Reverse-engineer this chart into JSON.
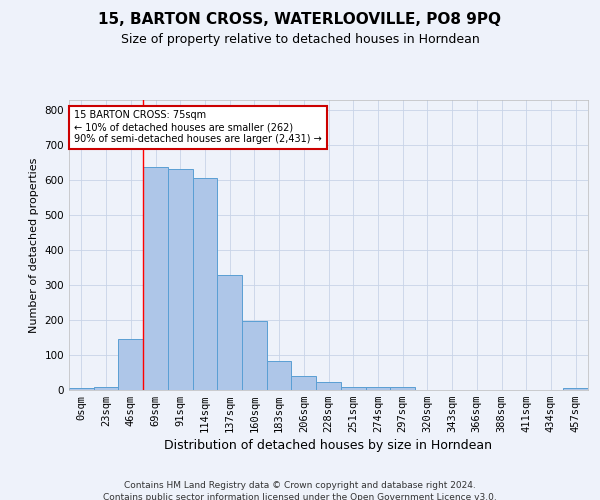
{
  "title": "15, BARTON CROSS, WATERLOOVILLE, PO8 9PQ",
  "subtitle": "Size of property relative to detached houses in Horndean",
  "xlabel": "Distribution of detached houses by size in Horndean",
  "ylabel": "Number of detached properties",
  "footer_line1": "Contains HM Land Registry data © Crown copyright and database right 2024.",
  "footer_line2": "Contains public sector information licensed under the Open Government Licence v3.0.",
  "bar_labels": [
    "0sqm",
    "23sqm",
    "46sqm",
    "69sqm",
    "91sqm",
    "114sqm",
    "137sqm",
    "160sqm",
    "183sqm",
    "206sqm",
    "228sqm",
    "251sqm",
    "274sqm",
    "297sqm",
    "320sqm",
    "343sqm",
    "366sqm",
    "388sqm",
    "411sqm",
    "434sqm",
    "457sqm"
  ],
  "bar_values": [
    5,
    10,
    145,
    638,
    633,
    607,
    330,
    197,
    84,
    40,
    22,
    10,
    10,
    10,
    0,
    0,
    0,
    0,
    0,
    0,
    5
  ],
  "bar_color": "#aec6e8",
  "bar_edge_color": "#5a9fd4",
  "background_color": "#eef2fa",
  "grid_color": "#c8d4e8",
  "annotation_line1": "15 BARTON CROSS: 75sqm",
  "annotation_line2": "← 10% of detached houses are smaller (262)",
  "annotation_line3": "90% of semi-detached houses are larger (2,431) →",
  "annotation_box_color": "#ffffff",
  "annotation_border_color": "#cc0000",
  "red_line_x": 3,
  "ylim": [
    0,
    830
  ],
  "yticks": [
    0,
    100,
    200,
    300,
    400,
    500,
    600,
    700,
    800
  ],
  "title_fontsize": 11,
  "subtitle_fontsize": 9,
  "ylabel_fontsize": 8,
  "xlabel_fontsize": 9,
  "tick_fontsize": 7.5,
  "annotation_fontsize": 7,
  "footer_fontsize": 6.5
}
